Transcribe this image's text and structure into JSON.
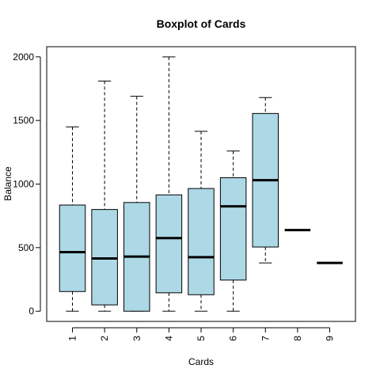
{
  "chart_data": {
    "type": "boxplot",
    "title": "Boxplot of Cards",
    "xlabel": "Cards",
    "ylabel": "Balance",
    "ylim": [
      -80,
      2080
    ],
    "yticks": [
      0,
      500,
      1000,
      1500,
      2000
    ],
    "categories": [
      "1",
      "2",
      "3",
      "4",
      "5",
      "6",
      "7",
      "8",
      "9"
    ],
    "box_color": "#add8e6",
    "boxes": [
      {
        "category": "1",
        "min": 0,
        "q1": 155,
        "median": 465,
        "q3": 835,
        "max": 1450
      },
      {
        "category": "2",
        "min": 0,
        "q1": 50,
        "median": 415,
        "q3": 800,
        "max": 1810
      },
      {
        "category": "3",
        "min": 0,
        "q1": 0,
        "median": 430,
        "q3": 855,
        "max": 1690
      },
      {
        "category": "4",
        "min": 0,
        "q1": 145,
        "median": 575,
        "q3": 915,
        "max": 2000
      },
      {
        "category": "5",
        "min": 0,
        "q1": 130,
        "median": 425,
        "q3": 965,
        "max": 1415
      },
      {
        "category": "6",
        "min": 0,
        "q1": 245,
        "median": 825,
        "q3": 1050,
        "max": 1260
      },
      {
        "category": "7",
        "min": 380,
        "q1": 505,
        "median": 1030,
        "q3": 1555,
        "max": 1680
      },
      {
        "category": "8",
        "min": 638,
        "q1": 638,
        "median": 638,
        "q3": 638,
        "max": 638
      },
      {
        "category": "9",
        "min": 380,
        "q1": 380,
        "median": 380,
        "q3": 380,
        "max": 380
      }
    ]
  }
}
